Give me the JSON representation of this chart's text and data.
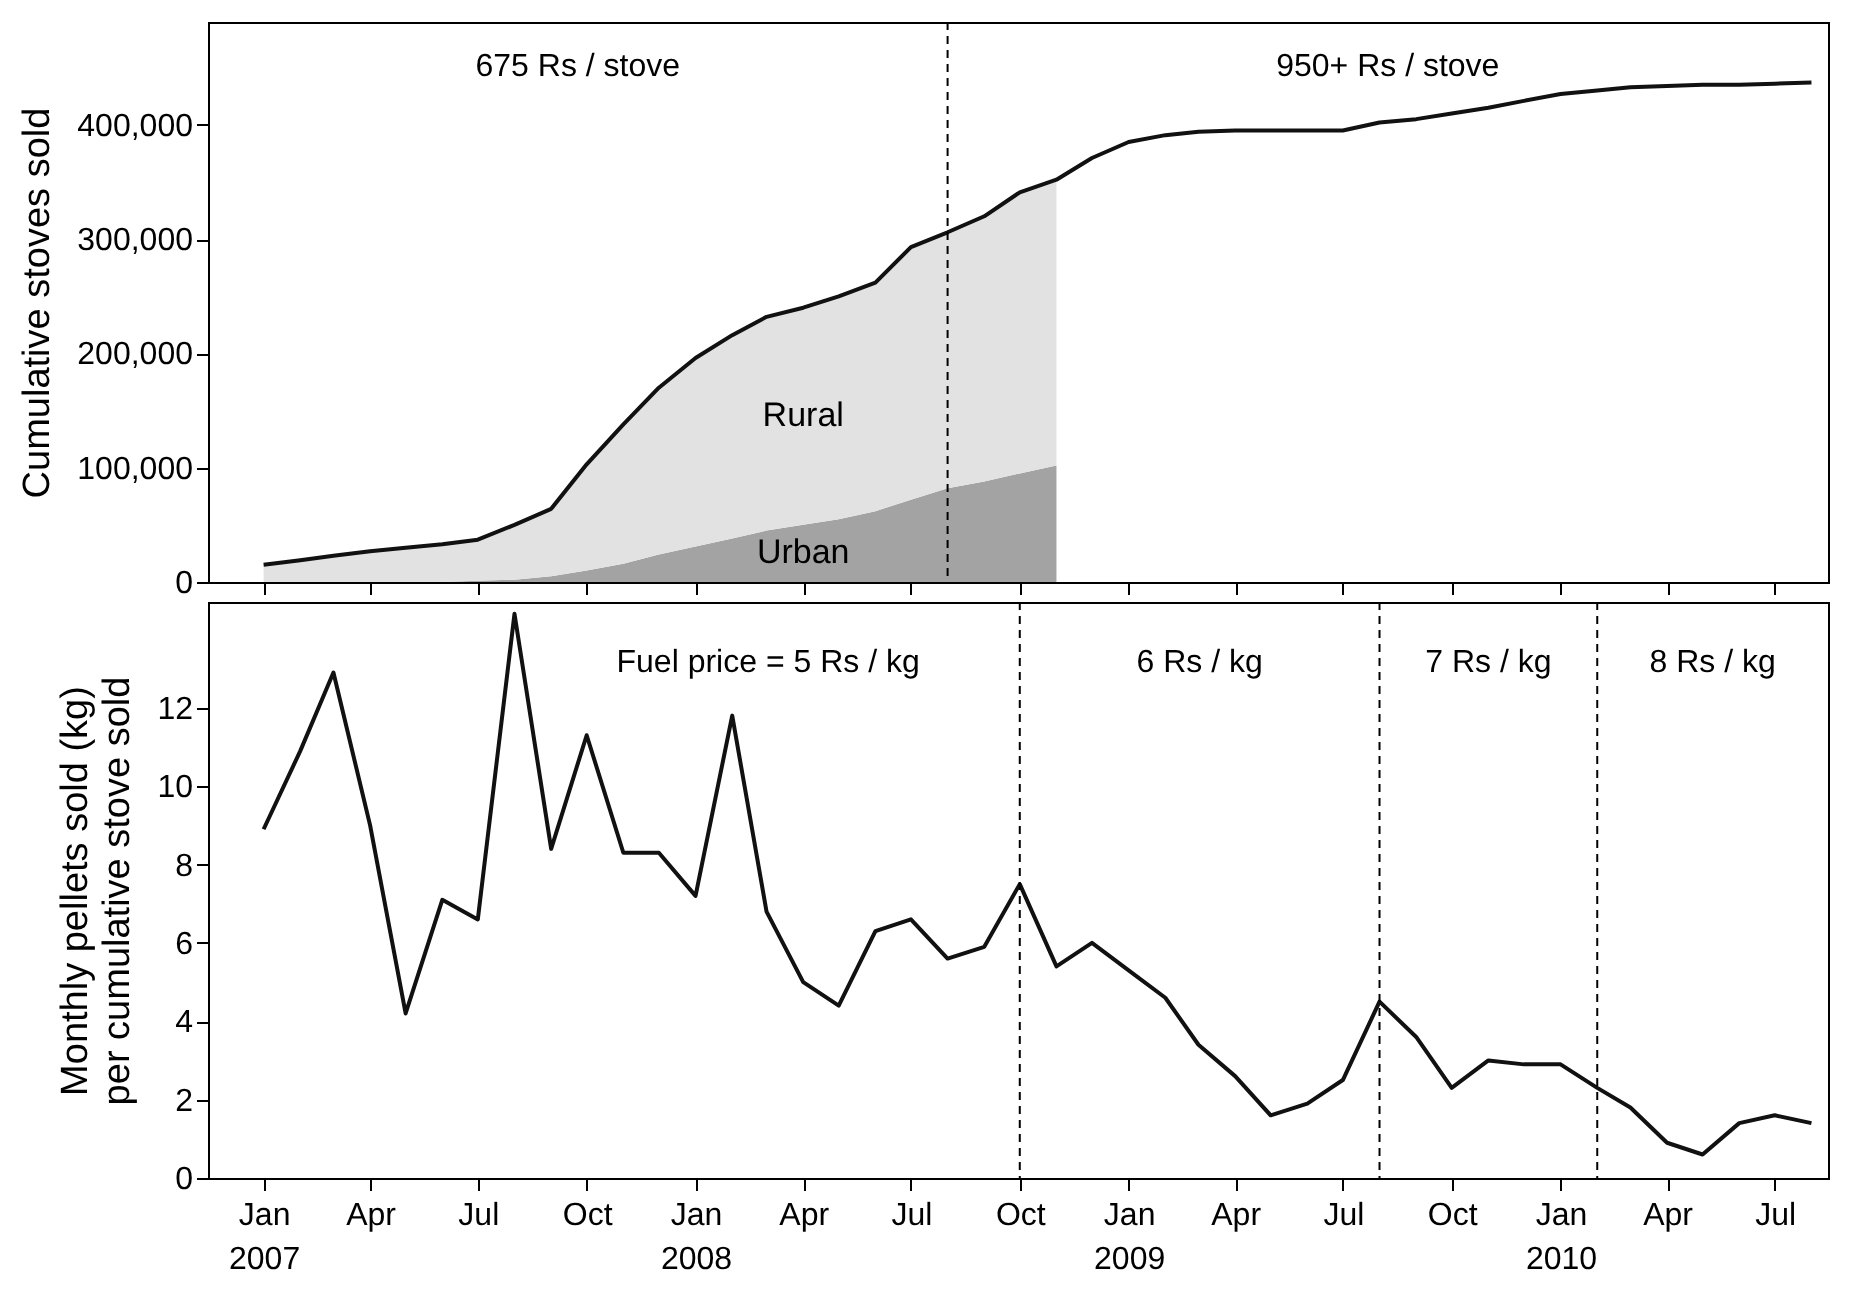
{
  "chart_data": [
    {
      "type": "area",
      "stacked": true,
      "ylabel": "Cumulative stoves sold",
      "tick_labels": "y",
      "x": [
        "2007-01",
        "2007-02",
        "2007-03",
        "2007-04",
        "2007-05",
        "2007-06",
        "2007-07",
        "2007-08",
        "2007-09",
        "2007-10",
        "2007-11",
        "2007-12",
        "2008-01",
        "2008-02",
        "2008-03",
        "2008-04",
        "2008-05",
        "2008-06",
        "2008-07",
        "2008-08",
        "2008-09",
        "2008-10",
        "2008-11",
        "2008-12",
        "2009-01",
        "2009-02",
        "2009-03",
        "2009-04",
        "2009-05",
        "2009-06",
        "2009-07",
        "2009-08",
        "2009-09",
        "2009-10",
        "2009-11",
        "2009-12",
        "2010-01",
        "2010-02",
        "2010-03",
        "2010-04",
        "2010-05",
        "2010-06",
        "2010-07",
        "2010-08"
      ],
      "series": [
        {
          "name": "Urban",
          "type": "area",
          "color": "#a3a3a3",
          "values": [
            0,
            0,
            0,
            0,
            0,
            0,
            1000,
            2000,
            5000,
            10000,
            16000,
            24000,
            31000,
            38000,
            45000,
            50000,
            55000,
            62000,
            72000,
            82000,
            88000,
            95000,
            102000,
            null,
            null,
            null,
            null,
            null,
            null,
            null,
            null,
            null,
            null,
            null,
            null,
            null,
            null,
            null,
            null,
            null,
            null,
            null,
            null,
            null
          ]
        },
        {
          "name": "Rural",
          "type": "area",
          "color": "#e2e2e2",
          "values": [
            15000,
            19000,
            23000,
            27000,
            30000,
            33000,
            36000,
            48000,
            59000,
            93000,
            122000,
            146000,
            165000,
            178000,
            187000,
            190000,
            195000,
            200000,
            221000,
            224000,
            232000,
            246000,
            250000,
            null,
            null,
            null,
            null,
            null,
            null,
            null,
            null,
            null,
            null,
            null,
            null,
            null,
            null,
            null,
            null,
            null,
            null,
            null,
            null,
            null
          ]
        },
        {
          "type": "line",
          "color": "#111111",
          "values": [
            15000,
            19000,
            23000,
            27000,
            30000,
            33000,
            37000,
            50000,
            64000,
            103000,
            138000,
            170000,
            196000,
            216000,
            232000,
            240000,
            250000,
            262000,
            293000,
            306000,
            320000,
            341000,
            352000,
            371000,
            385000,
            391000,
            394000,
            395000,
            395000,
            395000,
            395000,
            402000,
            405000,
            410000,
            415000,
            421000,
            427000,
            430000,
            433000,
            434000,
            435000,
            435000,
            436000,
            437000
          ]
        }
      ],
      "xlim": [
        "2006-11-15",
        "2010-08-15"
      ],
      "xticks": [
        {
          "value": "2007-01",
          "label": null
        },
        {
          "value": "2007-04",
          "label": null
        },
        {
          "value": "2007-07",
          "label": null
        },
        {
          "value": "2007-10",
          "label": null
        },
        {
          "value": "2008-01",
          "label": null
        },
        {
          "value": "2008-04",
          "label": null
        },
        {
          "value": "2008-07",
          "label": null
        },
        {
          "value": "2008-10",
          "label": null
        },
        {
          "value": "2009-01",
          "label": null
        },
        {
          "value": "2009-04",
          "label": null
        },
        {
          "value": "2009-07",
          "label": null
        },
        {
          "value": "2009-10",
          "label": null
        },
        {
          "value": "2010-01",
          "label": null
        },
        {
          "value": "2010-04",
          "label": null
        },
        {
          "value": "2010-07",
          "label": null
        }
      ],
      "ylim": [
        0,
        490000
      ],
      "yticks": [
        0,
        {
          "value": 100000,
          "label": "100,000"
        },
        {
          "value": 200000,
          "label": "200,000"
        },
        {
          "value": 300000,
          "label": "300,000"
        },
        {
          "value": 400000,
          "label": "400,000"
        }
      ],
      "ref_lines": [
        {
          "axis": "x",
          "value": "2008-08",
          "line_style": "dashed"
        }
      ],
      "annotations": [
        "675 Rs / stove",
        "950+ Rs / stove"
      ]
    },
    {
      "type": "line",
      "ylabel": "Monthly pellets sold (kg)\nper cumulative stove sold",
      "x": [
        "2007-01",
        "2007-02",
        "2007-03",
        "2007-04",
        "2007-05",
        "2007-06",
        "2007-07",
        "2007-08",
        "2007-09",
        "2007-10",
        "2007-11",
        "2007-12",
        "2008-01",
        "2008-02",
        "2008-03",
        "2008-04",
        "2008-05",
        "2008-06",
        "2008-07",
        "2008-08",
        "2008-09",
        "2008-10",
        "2008-11",
        "2008-12",
        "2009-01",
        "2009-02",
        "2009-03",
        "2009-04",
        "2009-05",
        "2009-06",
        "2009-07",
        "2009-08",
        "2009-09",
        "2009-10",
        "2009-11",
        "2009-12",
        "2010-01",
        "2010-02",
        "2010-03",
        "2010-04",
        "2010-05",
        "2010-06",
        "2010-07",
        "2010-08"
      ],
      "series": [
        {
          "color": "#111111",
          "values": [
            8.9,
            10.9,
            12.9,
            9.0,
            4.2,
            7.1,
            6.6,
            14.4,
            8.4,
            11.3,
            8.3,
            8.3,
            7.2,
            11.8,
            6.8,
            5.0,
            4.4,
            6.3,
            6.6,
            5.6,
            5.9,
            7.5,
            5.4,
            6.0,
            5.3,
            4.6,
            3.4,
            2.6,
            1.6,
            1.9,
            2.5,
            4.5,
            3.6,
            2.3,
            3.0,
            2.9,
            2.9,
            2.3,
            1.8,
            0.9,
            0.6,
            1.4,
            1.6,
            1.4
          ]
        }
      ],
      "xlim": [
        "2006-11-15",
        "2010-08-15"
      ],
      "xticks": [
        {
          "value": "2007-01",
          "label": "Jan\n2007"
        },
        {
          "value": "2007-04",
          "label": "Apr"
        },
        {
          "value": "2007-07",
          "label": "Jul"
        },
        {
          "value": "2007-10",
          "label": "Oct"
        },
        {
          "value": "2008-01",
          "label": "Jan\n2008"
        },
        {
          "value": "2008-04",
          "label": "Apr"
        },
        {
          "value": "2008-07",
          "label": "Jul"
        },
        {
          "value": "2008-10",
          "label": "Oct"
        },
        {
          "value": "2009-01",
          "label": "Jan\n2009"
        },
        {
          "value": "2009-04",
          "label": "Apr"
        },
        {
          "value": "2009-07",
          "label": "Jul"
        },
        {
          "value": "2009-10",
          "label": "Oct"
        },
        {
          "value": "2010-01",
          "label": "Jan\n2010"
        },
        {
          "value": "2010-04",
          "label": "Apr"
        },
        {
          "value": "2010-07",
          "label": "Jul"
        }
      ],
      "ylim": [
        0,
        14.7
      ],
      "yticks": [
        0,
        2,
        4,
        6,
        8,
        10,
        12
      ],
      "ref_lines": [
        {
          "axis": "x",
          "value": "2008-10",
          "line_style": "dashed"
        },
        {
          "axis": "x",
          "value": "2009-08",
          "line_style": "dashed"
        },
        {
          "axis": "x",
          "value": "2010-02",
          "line_style": "dashed"
        }
      ],
      "annotations": [
        "Fuel price = 5 Rs / kg",
        "6 Rs / kg",
        "7 Rs / kg",
        "8 Rs / kg"
      ]
    }
  ]
}
